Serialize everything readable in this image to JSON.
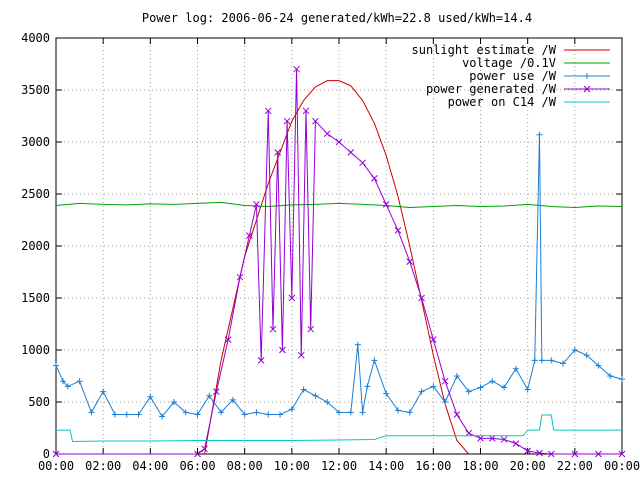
{
  "chart_data": {
    "type": "line",
    "title": "Power log: 2006-06-24 generated/kWh=22.8 used/kWh=14.4",
    "xlabel": "",
    "ylabel": "",
    "xlim": [
      0,
      24
    ],
    "ylim": [
      0,
      4000
    ],
    "x_ticks": [
      0,
      2,
      4,
      6,
      8,
      10,
      12,
      14,
      16,
      18,
      20,
      22,
      24
    ],
    "x_tick_labels": [
      "00:00",
      "02:00",
      "04:00",
      "06:00",
      "08:00",
      "10:00",
      "12:00",
      "14:00",
      "16:00",
      "18:00",
      "20:00",
      "22:00",
      "00:00"
    ],
    "y_ticks": [
      0,
      500,
      1000,
      1500,
      2000,
      2500,
      3000,
      3500,
      4000
    ],
    "y_tick_labels": [
      "0",
      "500",
      "1000",
      "1500",
      "2000",
      "2500",
      "3000",
      "3500",
      "4000"
    ],
    "grid": true,
    "legend_position": "top-right",
    "series": [
      {
        "name": "sunlight estimate /W",
        "color": "#cc0000",
        "marker": "none",
        "x": [
          6.3,
          7,
          8,
          9,
          10,
          10.5,
          11,
          11.5,
          12,
          12.5,
          13,
          13.5,
          14,
          14.5,
          15,
          15.5,
          16,
          16.5,
          17,
          17.5
        ],
        "y": [
          0,
          900,
          1900,
          2600,
          3200,
          3400,
          3530,
          3590,
          3590,
          3540,
          3400,
          3180,
          2870,
          2480,
          2000,
          1480,
          950,
          480,
          130,
          0
        ]
      },
      {
        "name": "voltage /0.1V",
        "color": "#00a000",
        "marker": "none",
        "x": [
          0,
          1,
          2,
          3,
          4,
          5,
          6,
          7,
          8,
          9,
          10,
          11,
          12,
          13,
          14,
          15,
          16,
          17,
          18,
          19,
          20,
          21,
          22,
          23,
          24
        ],
        "y": [
          2390,
          2410,
          2400,
          2395,
          2405,
          2400,
          2410,
          2420,
          2390,
          2380,
          2395,
          2400,
          2410,
          2400,
          2390,
          2370,
          2380,
          2390,
          2380,
          2385,
          2400,
          2380,
          2370,
          2385,
          2380
        ]
      },
      {
        "name": "power use /W",
        "color": "#1a7fd4",
        "marker": "plus",
        "x": [
          0,
          0.3,
          0.5,
          1,
          1.5,
          2,
          2.5,
          3,
          3.5,
          4,
          4.5,
          5,
          5.5,
          6,
          6.5,
          7,
          7.5,
          8,
          8.5,
          9,
          9.5,
          10,
          10.5,
          11,
          11.5,
          12,
          12.5,
          12.8,
          13,
          13.2,
          13.5,
          14,
          14.5,
          15,
          15.5,
          16,
          16.5,
          17,
          17.5,
          18,
          18.5,
          19,
          19.5,
          20,
          20.3,
          20.5,
          20.6,
          21,
          21.5,
          22,
          22.5,
          23,
          23.5,
          24
        ],
        "y": [
          850,
          700,
          650,
          700,
          400,
          600,
          380,
          380,
          380,
          550,
          360,
          500,
          400,
          380,
          560,
          400,
          520,
          380,
          400,
          380,
          380,
          430,
          620,
          560,
          500,
          400,
          400,
          1050,
          400,
          650,
          900,
          580,
          420,
          400,
          600,
          650,
          500,
          750,
          600,
          640,
          700,
          640,
          820,
          620,
          900,
          3070,
          900,
          900,
          870,
          1000,
          950,
          850,
          750,
          720
        ]
      },
      {
        "name": "power generated /W",
        "color": "#9400d3",
        "marker": "x",
        "x": [
          0,
          6,
          6.3,
          6.8,
          7.3,
          7.8,
          8.2,
          8.5,
          8.7,
          9.0,
          9.2,
          9.4,
          9.6,
          9.8,
          10.0,
          10.2,
          10.4,
          10.6,
          10.8,
          11.0,
          11.5,
          12,
          12.5,
          13,
          13.5,
          14,
          14.5,
          15,
          15.5,
          16,
          16.5,
          17,
          17.5,
          18,
          18.5,
          19,
          19.5,
          20,
          20.5,
          21,
          22,
          23,
          24
        ],
        "y": [
          0,
          0,
          50,
          600,
          1100,
          1700,
          2100,
          2400,
          900,
          3300,
          1200,
          2900,
          1000,
          3200,
          1500,
          3700,
          950,
          3300,
          1200,
          3200,
          3080,
          3000,
          2900,
          2800,
          2650,
          2400,
          2150,
          1850,
          1500,
          1100,
          700,
          380,
          200,
          150,
          150,
          140,
          100,
          30,
          10,
          0,
          0,
          0,
          0
        ]
      },
      {
        "name": "power on C14 /W",
        "color": "#00c8c8",
        "marker": "none",
        "x": [
          0,
          0.6,
          0.7,
          2,
          4,
          6,
          8,
          10,
          12,
          13.5,
          14,
          16,
          18,
          19.8,
          20,
          20.5,
          20.6,
          21,
          21.1,
          22,
          24
        ],
        "y": [
          230,
          230,
          120,
          125,
          125,
          130,
          130,
          130,
          135,
          140,
          175,
          175,
          175,
          175,
          230,
          230,
          375,
          375,
          230,
          230,
          230
        ]
      }
    ]
  }
}
